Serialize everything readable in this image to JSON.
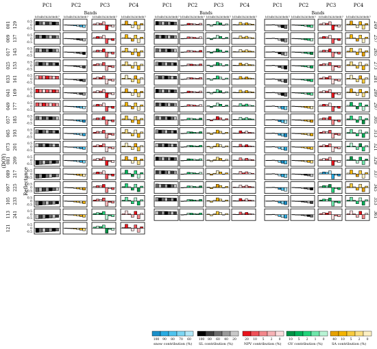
{
  "figure": {
    "pc_headers": [
      "PC1",
      "PC2",
      "PC3",
      "PC4"
    ],
    "bands_label": "Bands",
    "band_codes": "b1b4b1b2b5b6b7",
    "ylabel": "Reflectance",
    "doy_label": "(DOY)",
    "tick_labels": [
      "0.5",
      "0",
      "-0.5"
    ],
    "left_doys": [
      [
        "001",
        "129"
      ],
      [
        "009",
        "137"
      ],
      [
        "017",
        "145"
      ],
      [
        "025",
        "153"
      ],
      [
        "033",
        "161"
      ],
      [
        "041",
        "169"
      ],
      [
        "049",
        "177"
      ],
      [
        "057",
        "185"
      ],
      [
        "065",
        "193"
      ],
      [
        "073",
        "201"
      ],
      [
        "081",
        "209"
      ],
      [
        "089",
        "217"
      ],
      [
        "097",
        "225"
      ],
      [
        "105",
        "233"
      ],
      [
        "113",
        "241"
      ],
      [
        "121",
        ""
      ]
    ],
    "right_doys": [
      "249",
      "257",
      "265",
      "273",
      "281",
      "289",
      "297",
      "305",
      "313",
      "321",
      "329",
      "337",
      "345",
      "353",
      "361"
    ]
  },
  "legend": {
    "items": [
      {
        "label": "snow contribution (%)",
        "ticks": [
          "100",
          "90",
          "80",
          "70",
          "60"
        ],
        "colors": [
          "#1a8fc9",
          "#29abe2",
          "#4ec3ee",
          "#7dd6f3",
          "#b3e8f8"
        ]
      },
      {
        "label": "SL contribution (%)",
        "ticks": [
          "100",
          "80",
          "60",
          "40",
          "20"
        ],
        "colors": [
          "#000000",
          "#3d3d3d",
          "#6b6b6b",
          "#9a9a9a",
          "#c8c8c8"
        ]
      },
      {
        "label": "NPV contribution (%)",
        "ticks": [
          "20",
          "10",
          "5",
          "2",
          "0"
        ],
        "colors": [
          "#e8141c",
          "#ef5058",
          "#f3868a",
          "#f6b2b5",
          "#fbdcdd"
        ]
      },
      {
        "label": "GV contribution (%)",
        "ticks": [
          "10",
          "5",
          "2",
          "1",
          "0"
        ],
        "colors": [
          "#009245",
          "#00b25a",
          "#22d37a",
          "#6ee6aa",
          "#b8f3d4"
        ]
      },
      {
        "label": "SA contribution (%)",
        "ticks": [
          "40",
          "10",
          "5",
          "2",
          "0"
        ],
        "colors": [
          "#e6a100",
          "#f4b400",
          "#f8cb3d",
          "#fbdf84",
          "#fdf0c4"
        ]
      }
    ]
  },
  "chart_data": {
    "type": "bar",
    "description_of_grid": "3 blocks x 4 PCs (PC1-PC4) x 16 rows of small bar charts over 7 bands",
    "categories": [
      "b1",
      "b4",
      "b1",
      "b2",
      "b5",
      "b6",
      "b7"
    ],
    "ylim": [
      -0.5,
      0.5
    ],
    "shapes": {
      "A": [
        0.38,
        0.36,
        0.36,
        0.35,
        0.34,
        0.33,
        0.32
      ],
      "B": [
        0.02,
        -0.02,
        -0.05,
        -0.09,
        -0.14,
        -0.2,
        -0.27
      ],
      "C": [
        0.12,
        0.22,
        0.18,
        0.34,
        -0.52,
        -0.12,
        -0.22
      ],
      "D": [
        0.1,
        0.42,
        0.08,
        -0.28,
        0.36,
        -0.44,
        0.15
      ],
      "E": [
        -0.04,
        0.02,
        0.18,
        0.16,
        0.12,
        0.08,
        0.18
      ],
      "F": [
        0.06,
        -0.12,
        0.08,
        0.35,
        0.22,
        -0.02,
        0.12
      ],
      "G": [
        0.05,
        0.03,
        0.28,
        0.12,
        0.24,
        0.12,
        0.08
      ],
      "H": [
        0.02,
        0.02,
        0.04,
        -0.02,
        -0.2,
        -0.3,
        -0.38
      ],
      "I": [
        -0.45,
        -0.42,
        -0.4,
        -0.38,
        -0.36,
        -0.33,
        -0.3
      ]
    },
    "left_block": [
      [
        [
          "A",
          1
        ],
        [
          "B",
          0
        ],
        [
          "C",
          2
        ],
        [
          "D",
          4
        ]
      ],
      [
        [
          "A",
          1
        ],
        [
          "B",
          1
        ],
        [
          "C",
          2
        ],
        [
          "D",
          4
        ]
      ],
      [
        [
          "A",
          1
        ],
        [
          "B",
          1
        ],
        [
          "C",
          2
        ],
        [
          "D",
          4
        ]
      ],
      [
        [
          "A",
          1
        ],
        [
          "B",
          1
        ],
        [
          "C",
          2
        ],
        [
          "D",
          4
        ]
      ],
      [
        [
          "A",
          2
        ],
        [
          "B",
          1
        ],
        [
          "C",
          2
        ],
        [
          "D",
          4
        ]
      ],
      [
        [
          "A",
          2
        ],
        [
          "B",
          1
        ],
        [
          "C",
          2
        ],
        [
          "D",
          4
        ]
      ],
      [
        [
          "A",
          2
        ],
        [
          "B",
          0
        ],
        [
          "C",
          2
        ],
        [
          "D",
          4
        ]
      ],
      [
        [
          "A",
          1
        ],
        [
          "B",
          0
        ],
        [
          "C",
          2
        ],
        [
          "D",
          4
        ]
      ],
      [
        [
          "A",
          1
        ],
        [
          "B",
          0
        ],
        [
          "C",
          2
        ],
        [
          "D",
          4
        ]
      ],
      [
        [
          "A",
          1
        ],
        [
          "B",
          0
        ],
        [
          "C",
          2
        ],
        [
          "D",
          4
        ]
      ],
      [
        [
          "I",
          1
        ],
        [
          "B",
          0
        ],
        [
          "C",
          2
        ],
        [
          "D",
          4
        ]
      ],
      [
        [
          "I",
          1
        ],
        [
          "B",
          4
        ],
        [
          "C",
          2
        ],
        [
          "D",
          3
        ]
      ],
      [
        [
          "I",
          1
        ],
        [
          "B",
          4
        ],
        [
          "C",
          2
        ],
        [
          "D",
          3
        ]
      ],
      [
        [
          "I",
          1
        ],
        [
          "B",
          4
        ],
        [
          "C",
          2
        ],
        [
          "D",
          3
        ]
      ],
      [
        [
          "I",
          1
        ],
        [
          "B",
          4
        ],
        [
          "C",
          3
        ],
        [
          "D",
          2
        ]
      ],
      [
        [
          "I",
          1
        ],
        [
          "B",
          4
        ],
        [
          "C",
          3
        ],
        [
          "D",
          2
        ]
      ]
    ],
    "middle_block": [
      [
        [
          "A",
          1
        ],
        [
          "E",
          2
        ],
        [
          "F",
          3
        ],
        [
          "G",
          4
        ]
      ],
      [
        [
          "A",
          1
        ],
        [
          "E",
          2
        ],
        [
          "F",
          3
        ],
        [
          "G",
          4
        ]
      ],
      [
        [
          "A",
          1
        ],
        [
          "E",
          2
        ],
        [
          "F",
          3
        ],
        [
          "G",
          4
        ]
      ],
      [
        [
          "A",
          1
        ],
        [
          "E",
          2
        ],
        [
          "F",
          3
        ],
        [
          "G",
          4
        ]
      ],
      [
        [
          "A",
          1
        ],
        [
          "E",
          2
        ],
        [
          "F",
          3
        ],
        [
          "G",
          4
        ]
      ],
      [
        [
          "A",
          1
        ],
        [
          "E",
          2
        ],
        [
          "F",
          3
        ],
        [
          "G",
          4
        ]
      ],
      [
        [
          "A",
          1
        ],
        [
          "E",
          2
        ],
        [
          "F",
          3
        ],
        [
          "G",
          3
        ]
      ],
      [
        [
          "A",
          1
        ],
        [
          "E",
          3
        ],
        [
          "F",
          2
        ],
        [
          "G",
          3
        ]
      ],
      [
        [
          "A",
          1
        ],
        [
          "E",
          3
        ],
        [
          "F",
          4
        ],
        [
          "G",
          2
        ]
      ],
      [
        [
          "A",
          1
        ],
        [
          "E",
          3
        ],
        [
          "F",
          4
        ],
        [
          "G",
          2
        ]
      ],
      [
        [
          "A",
          1
        ],
        [
          "E",
          3
        ],
        [
          "F",
          4
        ],
        [
          "G",
          2
        ]
      ],
      [
        [
          "A",
          1
        ],
        [
          "E",
          3
        ],
        [
          "F",
          4
        ],
        [
          "G",
          2
        ]
      ],
      [
        [
          "A",
          1
        ],
        [
          "E",
          3
        ],
        [
          "F",
          4
        ],
        [
          "G",
          2
        ]
      ],
      [
        [
          "A",
          1
        ],
        [
          "E",
          3
        ],
        [
          "F",
          4
        ],
        [
          "G",
          2
        ]
      ],
      [
        [
          "A",
          1
        ],
        [
          "E",
          3
        ],
        [
          "F",
          4
        ],
        [
          "G",
          2
        ]
      ]
    ],
    "right_block": [
      [
        [
          "H",
          1
        ],
        [
          "B",
          3
        ],
        [
          "C",
          2
        ],
        [
          "D",
          4
        ]
      ],
      [
        [
          "H",
          1
        ],
        [
          "B",
          3
        ],
        [
          "C",
          2
        ],
        [
          "D",
          4
        ]
      ],
      [
        [
          "H",
          1
        ],
        [
          "B",
          3
        ],
        [
          "C",
          2
        ],
        [
          "D",
          4
        ]
      ],
      [
        [
          "H",
          1
        ],
        [
          "B",
          3
        ],
        [
          "C",
          2
        ],
        [
          "D",
          4
        ]
      ],
      [
        [
          "H",
          1
        ],
        [
          "B",
          3
        ],
        [
          "C",
          2
        ],
        [
          "D",
          4
        ]
      ],
      [
        [
          "H",
          1
        ],
        [
          "B",
          3
        ],
        [
          "C",
          2
        ],
        [
          "D",
          4
        ]
      ],
      [
        [
          "H",
          0
        ],
        [
          "B",
          4
        ],
        [
          "C",
          2
        ],
        [
          "D",
          3
        ]
      ],
      [
        [
          "H",
          0
        ],
        [
          "B",
          4
        ],
        [
          "C",
          2
        ],
        [
          "D",
          3
        ]
      ],
      [
        [
          "H",
          0
        ],
        [
          "B",
          4
        ],
        [
          "C",
          2
        ],
        [
          "D",
          3
        ]
      ],
      [
        [
          "H",
          0
        ],
        [
          "B",
          4
        ],
        [
          "C",
          2
        ],
        [
          "D",
          3
        ]
      ],
      [
        [
          "H",
          0
        ],
        [
          "B",
          4
        ],
        [
          "C",
          2
        ],
        [
          "D",
          3
        ]
      ],
      [
        [
          "H",
          0
        ],
        [
          "B",
          1
        ],
        [
          "C",
          0
        ],
        [
          "D",
          4
        ]
      ],
      [
        [
          "H",
          0
        ],
        [
          "B",
          1
        ],
        [
          "C",
          3
        ],
        [
          "D",
          4
        ]
      ],
      [
        [
          "H",
          0
        ],
        [
          "B",
          1
        ],
        [
          "C",
          3
        ],
        [
          "D",
          3
        ]
      ],
      [
        [
          "H",
          0
        ],
        [
          "B",
          1
        ],
        [
          "C",
          2
        ],
        [
          "D",
          2
        ]
      ]
    ]
  }
}
